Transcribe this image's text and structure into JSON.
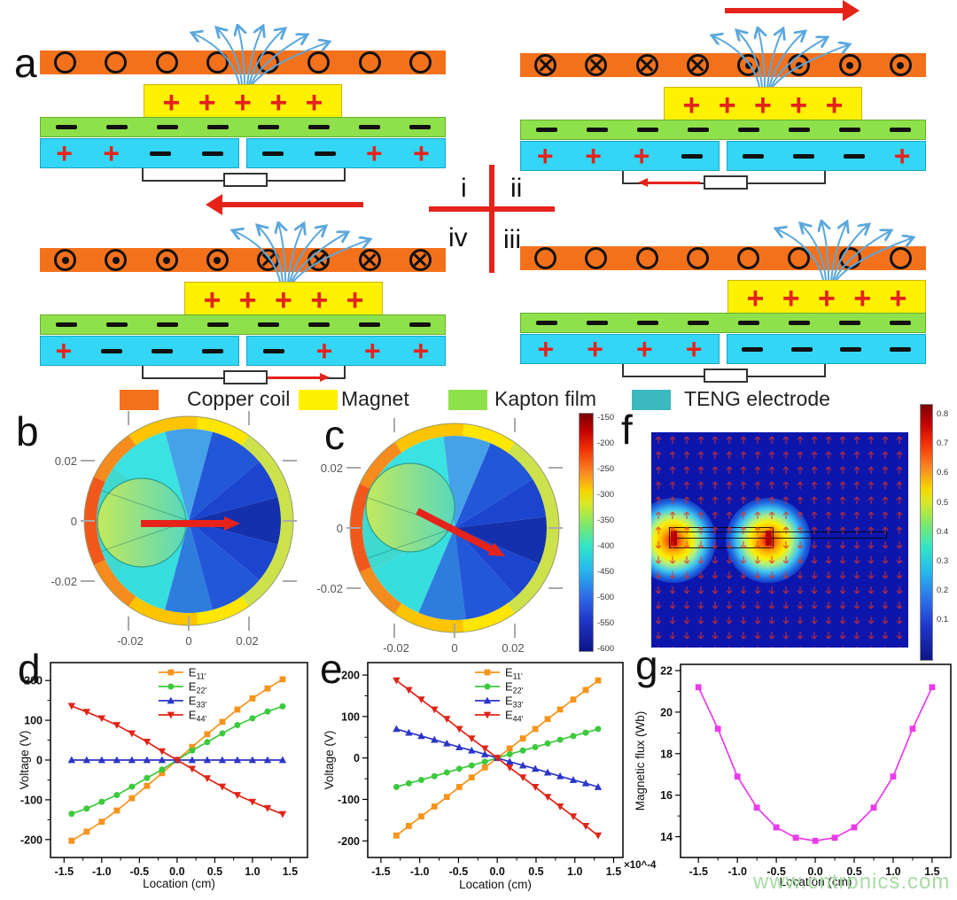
{
  "panel_labels": {
    "a": "a",
    "b": "b",
    "c": "c",
    "d": "d",
    "e": "e",
    "f": "f",
    "g": "g"
  },
  "quadrant_labels": {
    "i": "i",
    "ii": "ii",
    "iii": "iii",
    "iv": "iv"
  },
  "colors": {
    "copper_coil": "#F4711C",
    "magnet": "#FFF100",
    "kapton_film": "#8FE14B",
    "teng_electrode_schematic": "#33D6F5",
    "teng_electrode_legend": "#3CB9BE",
    "accent_red": "#E5231B",
    "field_line_blue": "#5AA7DC",
    "watermark_green": "#A9DBA5"
  },
  "schematics": [
    {
      "id": "i",
      "coil": [
        "o",
        "o",
        "o",
        "o",
        "o",
        "o",
        "o",
        "o"
      ],
      "magnet_shift": 0,
      "magnet_charges": [
        "+",
        "+",
        "+",
        "+",
        "+"
      ],
      "kapton_minus": 8,
      "teng_left": [
        "+",
        "+",
        "-",
        "-"
      ],
      "teng_right": [
        "-",
        "-",
        "+",
        "+"
      ],
      "top_arrow": null,
      "circuit_arrow": null
    },
    {
      "id": "ii",
      "coil": [
        "x",
        "x",
        "x",
        "x",
        "d",
        "d",
        "d",
        "d"
      ],
      "magnet_shift": 45,
      "magnet_charges": [
        "+",
        "+",
        "+",
        "+",
        "+"
      ],
      "kapton_minus": 8,
      "teng_left": [
        "+",
        "+",
        "+",
        "-"
      ],
      "teng_right": [
        "-",
        "-",
        "-",
        "+"
      ],
      "top_arrow": "right",
      "circuit_arrow": "left"
    },
    {
      "id": "iii",
      "coil": [
        "o",
        "o",
        "o",
        "o",
        "o",
        "o",
        "o",
        "o"
      ],
      "magnet_shift": 117,
      "magnet_charges": [
        "+",
        "+",
        "+",
        "+",
        "+"
      ],
      "kapton_minus": 8,
      "teng_left": [
        "+",
        "+",
        "+",
        "+"
      ],
      "teng_right": [
        "-",
        "-",
        "-",
        "-"
      ],
      "top_arrow": null,
      "circuit_arrow": null
    },
    {
      "id": "iv",
      "coil": [
        "d",
        "d",
        "d",
        "d",
        "x",
        "x",
        "x",
        "x"
      ],
      "magnet_shift": 46,
      "magnet_charges": [
        "+",
        "+",
        "+",
        "+",
        "+"
      ],
      "kapton_minus": 8,
      "teng_left": [
        "+",
        "-",
        "-",
        "-"
      ],
      "teng_right": [
        "-",
        "+",
        "+",
        "+"
      ],
      "top_arrow": "left",
      "circuit_arrow": "right"
    }
  ],
  "legend": {
    "items": [
      {
        "label": "Copper coil",
        "color": "#F4711C"
      },
      {
        "label": "Magnet",
        "color": "#FFF100"
      },
      {
        "label": "Kapton film",
        "color": "#8FE14B"
      },
      {
        "label": "TENG electrode",
        "color": "#3CB9BE"
      }
    ]
  },
  "dials": {
    "y_ticks": [
      "0.02",
      "0",
      "-0.02"
    ],
    "x_ticks": [
      "-0.02",
      "0",
      "0.02"
    ]
  },
  "colorbar_bc": {
    "ticks": [
      "-150",
      "-200",
      "-250",
      "-300",
      "-350",
      "-400",
      "-450",
      "-500",
      "-550",
      "-600"
    ]
  },
  "colorbar_f": {
    "ticks": [
      "0.8",
      "0.7",
      "0.6",
      "0.5",
      "0.4",
      "0.3",
      "0.2",
      "0.1"
    ]
  },
  "watermark": "www.cntronics.com",
  "chart_data": [
    {
      "id": "d",
      "type": "line",
      "title": "",
      "xlabel": "Location (cm)",
      "ylabel": "Voltage (V)",
      "xlim": [
        -1.68,
        1.73
      ],
      "ylim": [
        -245,
        245
      ],
      "xtick_values": [
        -1.5,
        -1.0,
        -0.5,
        0,
        0.5,
        1.0,
        1.5
      ],
      "xtick_labels": [
        "-1.5",
        "-1.0",
        "-0.5",
        "0.0",
        "0.5",
        "1.0",
        "1.5"
      ],
      "ytick_values": [
        -200,
        -100,
        0,
        100,
        200
      ],
      "ytick_labels": [
        "-200",
        "-100",
        "0",
        "100",
        "200"
      ],
      "legend": true,
      "grid": false,
      "x": [
        -1.4,
        -1.2,
        -1.0,
        -0.8,
        -0.6,
        -0.4,
        -0.2,
        0,
        0.2,
        0.4,
        0.6,
        0.8,
        1.0,
        1.2,
        1.4
      ],
      "series": [
        {
          "name": "E11'",
          "label_main": "E",
          "label_sub": "11'",
          "color": "#F7941D",
          "marker": "square",
          "values": [
            -203,
            -180,
            -155,
            -127,
            -96,
            -65,
            -33,
            0,
            33,
            65,
            96,
            127,
            155,
            180,
            203
          ]
        },
        {
          "name": "E22'",
          "label_main": "E",
          "label_sub": "22'",
          "color": "#3DC93D",
          "marker": "circle",
          "values": [
            -135,
            -122,
            -105,
            -88,
            -67,
            -45,
            -24,
            0,
            24,
            45,
            67,
            88,
            105,
            122,
            135
          ]
        },
        {
          "name": "E33'",
          "label_main": "E",
          "label_sub": "33'",
          "color": "#2B35C9",
          "marker": "triangle-up",
          "values": [
            0,
            0,
            0,
            0,
            0,
            0,
            0,
            0,
            0,
            0,
            0,
            0,
            0,
            0,
            0
          ]
        },
        {
          "name": "E44'",
          "label_main": "E",
          "label_sub": "44'",
          "color": "#E02418",
          "marker": "triangle-down",
          "values": [
            136,
            121,
            105,
            88,
            67,
            46,
            22,
            0,
            -22,
            -46,
            -67,
            -88,
            -105,
            -121,
            -136
          ]
        }
      ]
    },
    {
      "id": "e",
      "type": "line",
      "title": "",
      "xlabel": "Location (cm)",
      "ylabel": "Voltage (V)",
      "xlim": [
        -1.67,
        1.62
      ],
      "ylim": [
        -240,
        230
      ],
      "xtick_values": [
        -1.5,
        -1.0,
        -0.5,
        0,
        0.5,
        1.0,
        1.5
      ],
      "xtick_labels": [
        "-1.5",
        "-1.0",
        "-0.5",
        "0.0",
        "0.5",
        "1.0",
        "1.5"
      ],
      "ytick_values": [
        -200,
        -100,
        0,
        100,
        200
      ],
      "ytick_labels": [
        "-200",
        "-100",
        "0",
        "100",
        "200"
      ],
      "legend": true,
      "grid": false,
      "x": [
        -1.3,
        -1.14,
        -0.98,
        -0.81,
        -0.65,
        -0.49,
        -0.33,
        -0.16,
        0,
        0.16,
        0.33,
        0.49,
        0.65,
        0.81,
        0.98,
        1.14,
        1.3
      ],
      "series": [
        {
          "name": "E11'",
          "label_main": "E",
          "label_sub": "11'",
          "color": "#F7941D",
          "marker": "square",
          "values": [
            -187,
            -164,
            -141,
            -117,
            -94,
            -70,
            -47,
            -23,
            0,
            23,
            47,
            70,
            94,
            117,
            141,
            164,
            187
          ]
        },
        {
          "name": "E22'",
          "label_main": "E",
          "label_sub": "22'",
          "color": "#3DC93D",
          "marker": "circle",
          "values": [
            -70,
            -61,
            -53,
            -44,
            -35,
            -26,
            -18,
            -9,
            0,
            9,
            18,
            26,
            35,
            44,
            53,
            61,
            70
          ]
        },
        {
          "name": "E33'",
          "label_main": "E",
          "label_sub": "33'",
          "color": "#2B35C9",
          "marker": "triangle-up",
          "values": [
            70,
            61,
            53,
            44,
            35,
            26,
            18,
            9,
            0,
            -9,
            -18,
            -26,
            -35,
            -44,
            -53,
            -61,
            -70
          ]
        },
        {
          "name": "E44'",
          "label_main": "E",
          "label_sub": "44'",
          "color": "#E02418",
          "marker": "triangle-down",
          "values": [
            187,
            164,
            141,
            117,
            94,
            70,
            47,
            23,
            0,
            -23,
            -47,
            -70,
            -94,
            -117,
            -141,
            -164,
            -187
          ]
        }
      ]
    },
    {
      "id": "g",
      "type": "line",
      "title": "",
      "xlabel": "Location (cm)",
      "ylabel": "Magnetic flux (Wb)",
      "scale_label": "×10^-4",
      "xlim": [
        -1.73,
        1.74
      ],
      "ylim": [
        13,
        22.3
      ],
      "xtick_values": [
        -1.5,
        -1.0,
        -0.5,
        0,
        0.5,
        1.0,
        1.5
      ],
      "xtick_labels": [
        "-1.5",
        "-1.0",
        "-0.5",
        "0.0",
        "0.5",
        "1.0",
        "1.5"
      ],
      "ytick_values": [
        14,
        16,
        18,
        20,
        22
      ],
      "ytick_labels": [
        "14",
        "16",
        "18",
        "20",
        "22"
      ],
      "legend": false,
      "grid": false,
      "x": [
        -1.5,
        -1.25,
        -1.0,
        -0.75,
        -0.5,
        -0.25,
        0,
        0.25,
        0.5,
        0.75,
        1.0,
        1.25,
        1.5
      ],
      "series": [
        {
          "name": "Magnetic flux",
          "label_main": "Magnetic flux",
          "label_sub": "",
          "color": "#EA3BEA",
          "marker": "square",
          "values": [
            21.2,
            19.2,
            16.9,
            15.4,
            14.45,
            13.95,
            13.8,
            13.95,
            14.45,
            15.4,
            16.9,
            19.2,
            21.2
          ]
        }
      ]
    }
  ]
}
